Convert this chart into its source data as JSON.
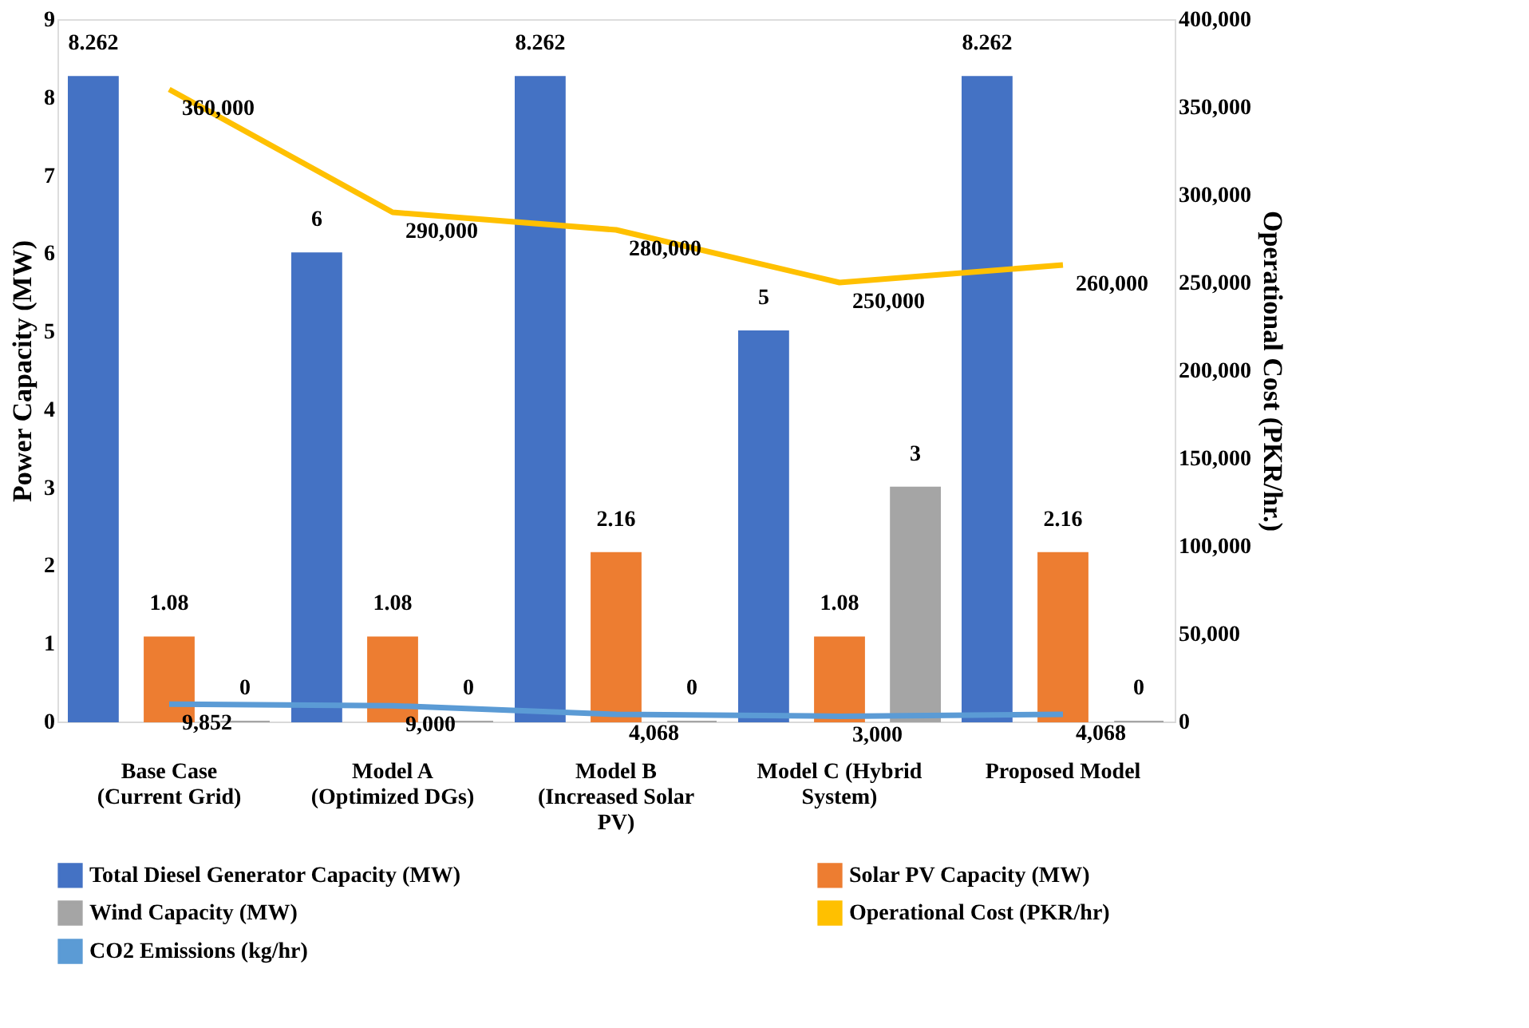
{
  "chart_data": {
    "type": "bar",
    "categories": [
      "Base Case (Current Grid)",
      "Model A (Optimized DGs)",
      "Model B (Increased Solar PV)",
      "Model C (Hybrid System)",
      "Proposed Model"
    ],
    "ylabel": "Power Capacity (MW)",
    "y2label": "Operational Cost (PKR/hr.)",
    "ylim": [
      0,
      9
    ],
    "yticks": [
      0,
      1,
      2,
      3,
      4,
      5,
      6,
      7,
      8,
      9
    ],
    "y2lim": [
      0,
      400000
    ],
    "y2ticks": [
      0,
      {
        "value": 50000,
        "label": "50,000"
      },
      {
        "value": 100000,
        "label": "100,000"
      },
      {
        "value": 150000,
        "label": "150,000"
      },
      {
        "value": 200000,
        "label": "200,000"
      },
      {
        "value": 250000,
        "label": "250,000"
      },
      {
        "value": 300000,
        "label": "300,000"
      },
      {
        "value": 350000,
        "label": "350,000"
      },
      {
        "value": 400000,
        "label": "400,000"
      }
    ],
    "series": [
      {
        "name": "Total Diesel Generator Capacity (MW)",
        "color": "#4472c4",
        "values": [
          8.262,
          6,
          8.262,
          5,
          8.262
        ],
        "value_labels": [
          "8.262",
          "6",
          "8.262",
          "5",
          "8.262"
        ]
      },
      {
        "name": "Solar PV Capacity (MW)",
        "color": "#ed7d31",
        "values": [
          1.08,
          1.08,
          2.16,
          1.08,
          2.16
        ],
        "value_labels": [
          "1.08",
          "1.08",
          "2.16",
          "1.08",
          "2.16"
        ]
      },
      {
        "name": "Wind Capacity (MW)",
        "color": "#a5a5a5",
        "values": [
          0,
          0,
          0,
          3,
          0
        ],
        "value_labels": [
          "0",
          "0",
          "0",
          "3",
          "0"
        ]
      },
      {
        "name": "Operational Cost (PKR/hr)",
        "color": "#ffc000",
        "type": "line",
        "axis": "y2",
        "values": [
          360000,
          290000,
          280000,
          250000,
          260000
        ],
        "value_labels": [
          "360,000",
          "290,000",
          "280,000",
          "250,000",
          "260,000"
        ]
      },
      {
        "name": "CO2 Emissions (kg/hr)",
        "color": "#5b9bd5",
        "type": "line",
        "axis": "y2",
        "values": [
          9852,
          9000,
          4068,
          3000,
          4068
        ],
        "value_labels": [
          "9,852",
          "9,000",
          "4,068",
          "3,000",
          "4,068"
        ]
      }
    ],
    "legend": "bottom",
    "marker": "none",
    "line_style": "solid"
  }
}
